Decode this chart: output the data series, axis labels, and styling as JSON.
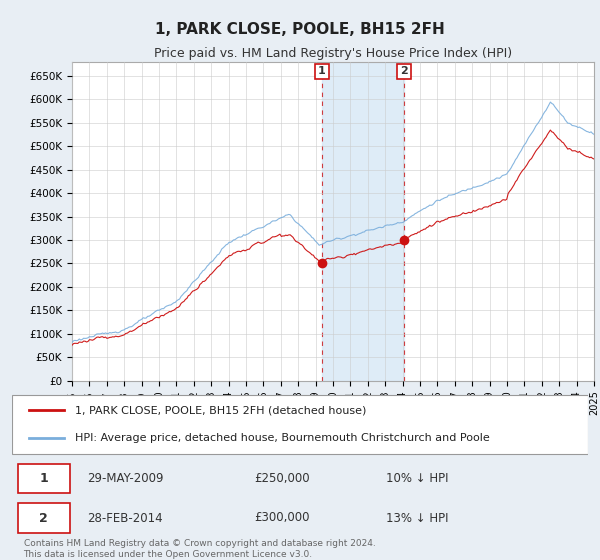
{
  "title": "1, PARK CLOSE, POOLE, BH15 2FH",
  "subtitle": "Price paid vs. HM Land Registry's House Price Index (HPI)",
  "legend_line1": "1, PARK CLOSE, POOLE, BH15 2FH (detached house)",
  "legend_line2": "HPI: Average price, detached house, Bournemouth Christchurch and Poole",
  "footnote1": "Contains HM Land Registry data © Crown copyright and database right 2024.",
  "footnote2": "This data is licensed under the Open Government Licence v3.0.",
  "sale1_date": "29-MAY-2009",
  "sale1_price": "£250,000",
  "sale1_note": "10% ↓ HPI",
  "sale2_date": "28-FEB-2014",
  "sale2_price": "£300,000",
  "sale2_note": "13% ↓ HPI",
  "sale1_t": 2009.37,
  "sale1_y": 250000,
  "sale2_t": 2014.08,
  "sale2_y": 300000,
  "ylim": [
    0,
    680000
  ],
  "xlim": [
    1995,
    2025
  ],
  "yticks": [
    0,
    50000,
    100000,
    150000,
    200000,
    250000,
    300000,
    350000,
    400000,
    450000,
    500000,
    550000,
    600000,
    650000
  ],
  "hpi_color": "#7aaedc",
  "price_color": "#cc1111",
  "shade_color": "#d0e4f5",
  "bg_color": "#e8eef4",
  "plot_bg": "#ffffff",
  "grid_color": "#cccccc",
  "title_fontsize": 11,
  "subtitle_fontsize": 9
}
